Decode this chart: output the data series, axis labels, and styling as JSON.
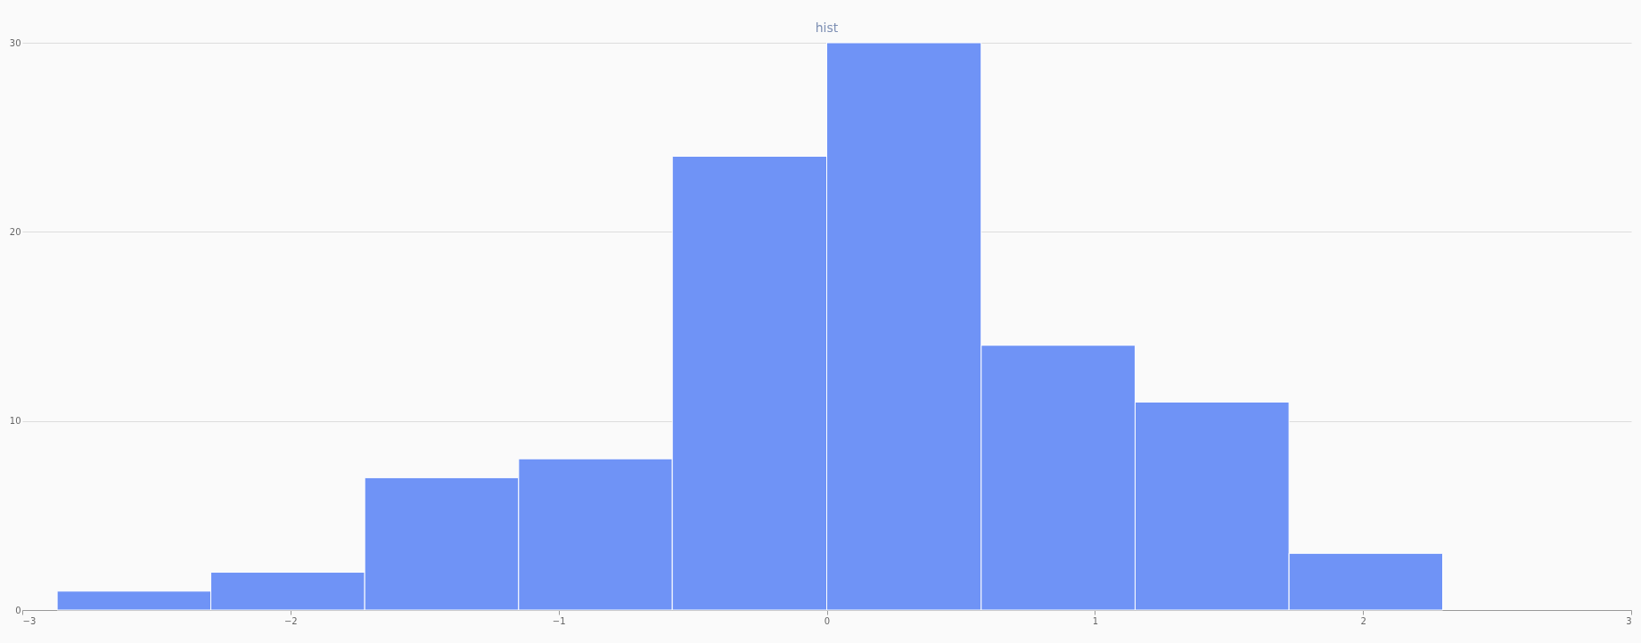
{
  "chart_data": {
    "type": "histogram",
    "title": "hist",
    "bins": [
      -2.87,
      -2.297,
      -1.723,
      -1.149,
      -0.576,
      0,
      0.576,
      1.15,
      1.724,
      2.297
    ],
    "values": [
      1,
      2,
      7,
      8,
      24,
      30,
      14,
      11,
      3
    ],
    "color": "#6f93f6",
    "xlim": [
      -3,
      3
    ],
    "xticks": [
      -3,
      -2,
      -1,
      0,
      1,
      2,
      3
    ],
    "ylim": [
      0,
      30
    ],
    "yticks": [
      0,
      10,
      20,
      30
    ],
    "grid": "y"
  }
}
